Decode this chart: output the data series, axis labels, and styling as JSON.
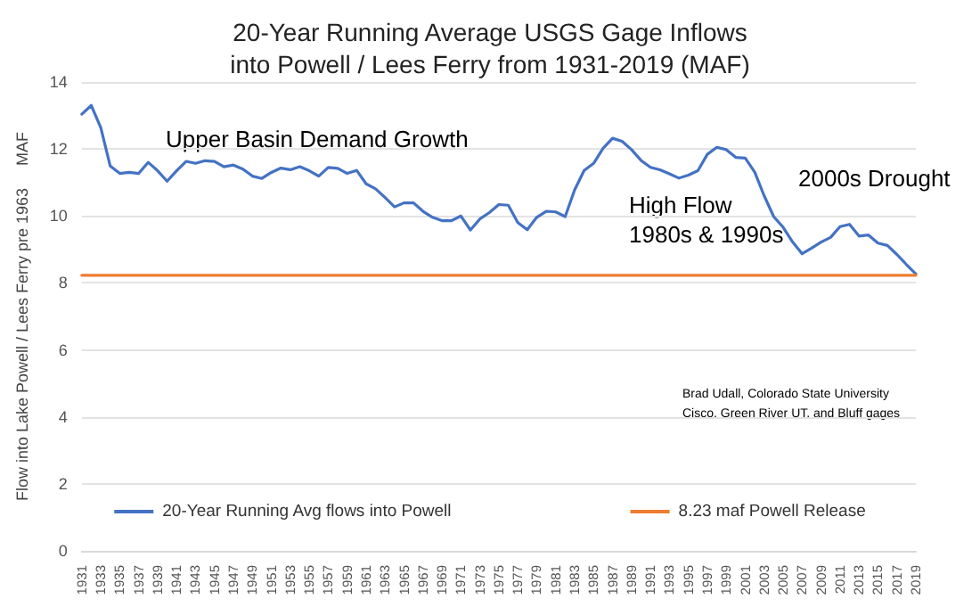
{
  "chart_data": {
    "type": "line",
    "title": "20-Year Running Average USGS Gage Inflows\ninto Powell / Lees Ferry from 1931-2019 (MAF)",
    "ylabel": "Flow into Lake Powell / Lees Ferry pre 1963     MAF",
    "categories": [
      "1931",
      null,
      "1933",
      null,
      "1935",
      null,
      "1937",
      null,
      "1939",
      null,
      "1941",
      null,
      "1943",
      null,
      "1945",
      null,
      "1947",
      null,
      "1949",
      null,
      "1951",
      null,
      "1953",
      null,
      "1955",
      null,
      "1957",
      null,
      "1959",
      null,
      "1961",
      null,
      "1963",
      null,
      "1965",
      null,
      "1967",
      null,
      "1969",
      null,
      "1971",
      null,
      "1973",
      null,
      "1975",
      null,
      "1977",
      null,
      "1979",
      null,
      "1981",
      null,
      "1983",
      null,
      "1985",
      null,
      "1987",
      null,
      "1989",
      null,
      "1991",
      null,
      "1993",
      null,
      "1995",
      null,
      "1997",
      null,
      "1999",
      null,
      "2001",
      null,
      "2003",
      null,
      "2005",
      null,
      "2007",
      null,
      "2009",
      null,
      "2011",
      null,
      "2013",
      null,
      "2015",
      null,
      "2017",
      null,
      "2019"
    ],
    "series": [
      {
        "name": "20-Year Running Avg flows into Powell",
        "color": "#4472c4",
        "values": [
          13.04,
          13.3,
          12.64,
          11.49,
          11.27,
          11.3,
          11.27,
          11.6,
          11.35,
          11.04,
          11.35,
          11.63,
          11.57,
          11.65,
          11.63,
          11.47,
          11.52,
          11.4,
          11.19,
          11.12,
          11.3,
          11.43,
          11.38,
          11.47,
          11.35,
          11.19,
          11.45,
          11.42,
          11.27,
          11.36,
          10.96,
          10.81,
          10.55,
          10.27,
          10.39,
          10.39,
          10.14,
          9.96,
          9.86,
          9.86,
          10.0,
          9.58,
          9.91,
          10.1,
          10.34,
          10.32,
          9.8,
          9.59,
          9.96,
          10.14,
          10.12,
          9.98,
          10.78,
          11.36,
          11.57,
          12.02,
          12.32,
          12.23,
          11.98,
          11.66,
          11.45,
          11.38,
          11.26,
          11.13,
          11.22,
          11.35,
          11.84,
          12.05,
          11.98,
          11.75,
          11.73,
          11.31,
          10.6,
          9.98,
          9.66,
          9.22,
          8.87,
          9.04,
          9.22,
          9.36,
          9.68,
          9.75,
          9.4,
          9.43,
          9.19,
          9.12,
          8.85,
          8.55,
          8.27
        ]
      },
      {
        "name": "8.23 maf Powell Release",
        "color": "#ed7d31",
        "values": [
          8.23,
          8.23,
          8.23,
          8.23,
          8.23,
          8.23,
          8.23,
          8.23,
          8.23,
          8.23,
          8.23,
          8.23,
          8.23,
          8.23,
          8.23,
          8.23,
          8.23,
          8.23,
          8.23,
          8.23,
          8.23,
          8.23,
          8.23,
          8.23,
          8.23,
          8.23,
          8.23,
          8.23,
          8.23,
          8.23,
          8.23,
          8.23,
          8.23,
          8.23,
          8.23,
          8.23,
          8.23,
          8.23,
          8.23,
          8.23,
          8.23,
          8.23,
          8.23,
          8.23,
          8.23,
          8.23,
          8.23,
          8.23,
          8.23,
          8.23,
          8.23,
          8.23,
          8.23,
          8.23,
          8.23,
          8.23,
          8.23,
          8.23,
          8.23,
          8.23,
          8.23,
          8.23,
          8.23,
          8.23,
          8.23,
          8.23,
          8.23,
          8.23,
          8.23,
          8.23,
          8.23,
          8.23,
          8.23,
          8.23,
          8.23,
          8.23,
          8.23,
          8.23,
          8.23,
          8.23,
          8.23,
          8.23,
          8.23,
          8.23,
          8.23,
          8.23,
          8.23,
          8.23,
          8.23
        ]
      }
    ],
    "annotations": [
      "Upper Basin Demand Growth",
      "High Flow\n1980s & 1990s",
      "2000s Drought",
      "Brad Udall, Colorado State University",
      "Cisco, Green River UT, and Bluff gages"
    ],
    "ylim": [
      0,
      14
    ],
    "yticks": [
      0,
      2,
      4,
      6,
      8,
      10,
      12,
      14
    ],
    "grid": "y",
    "legend": "bottom",
    "marker": "none",
    "line_style": "solid"
  }
}
